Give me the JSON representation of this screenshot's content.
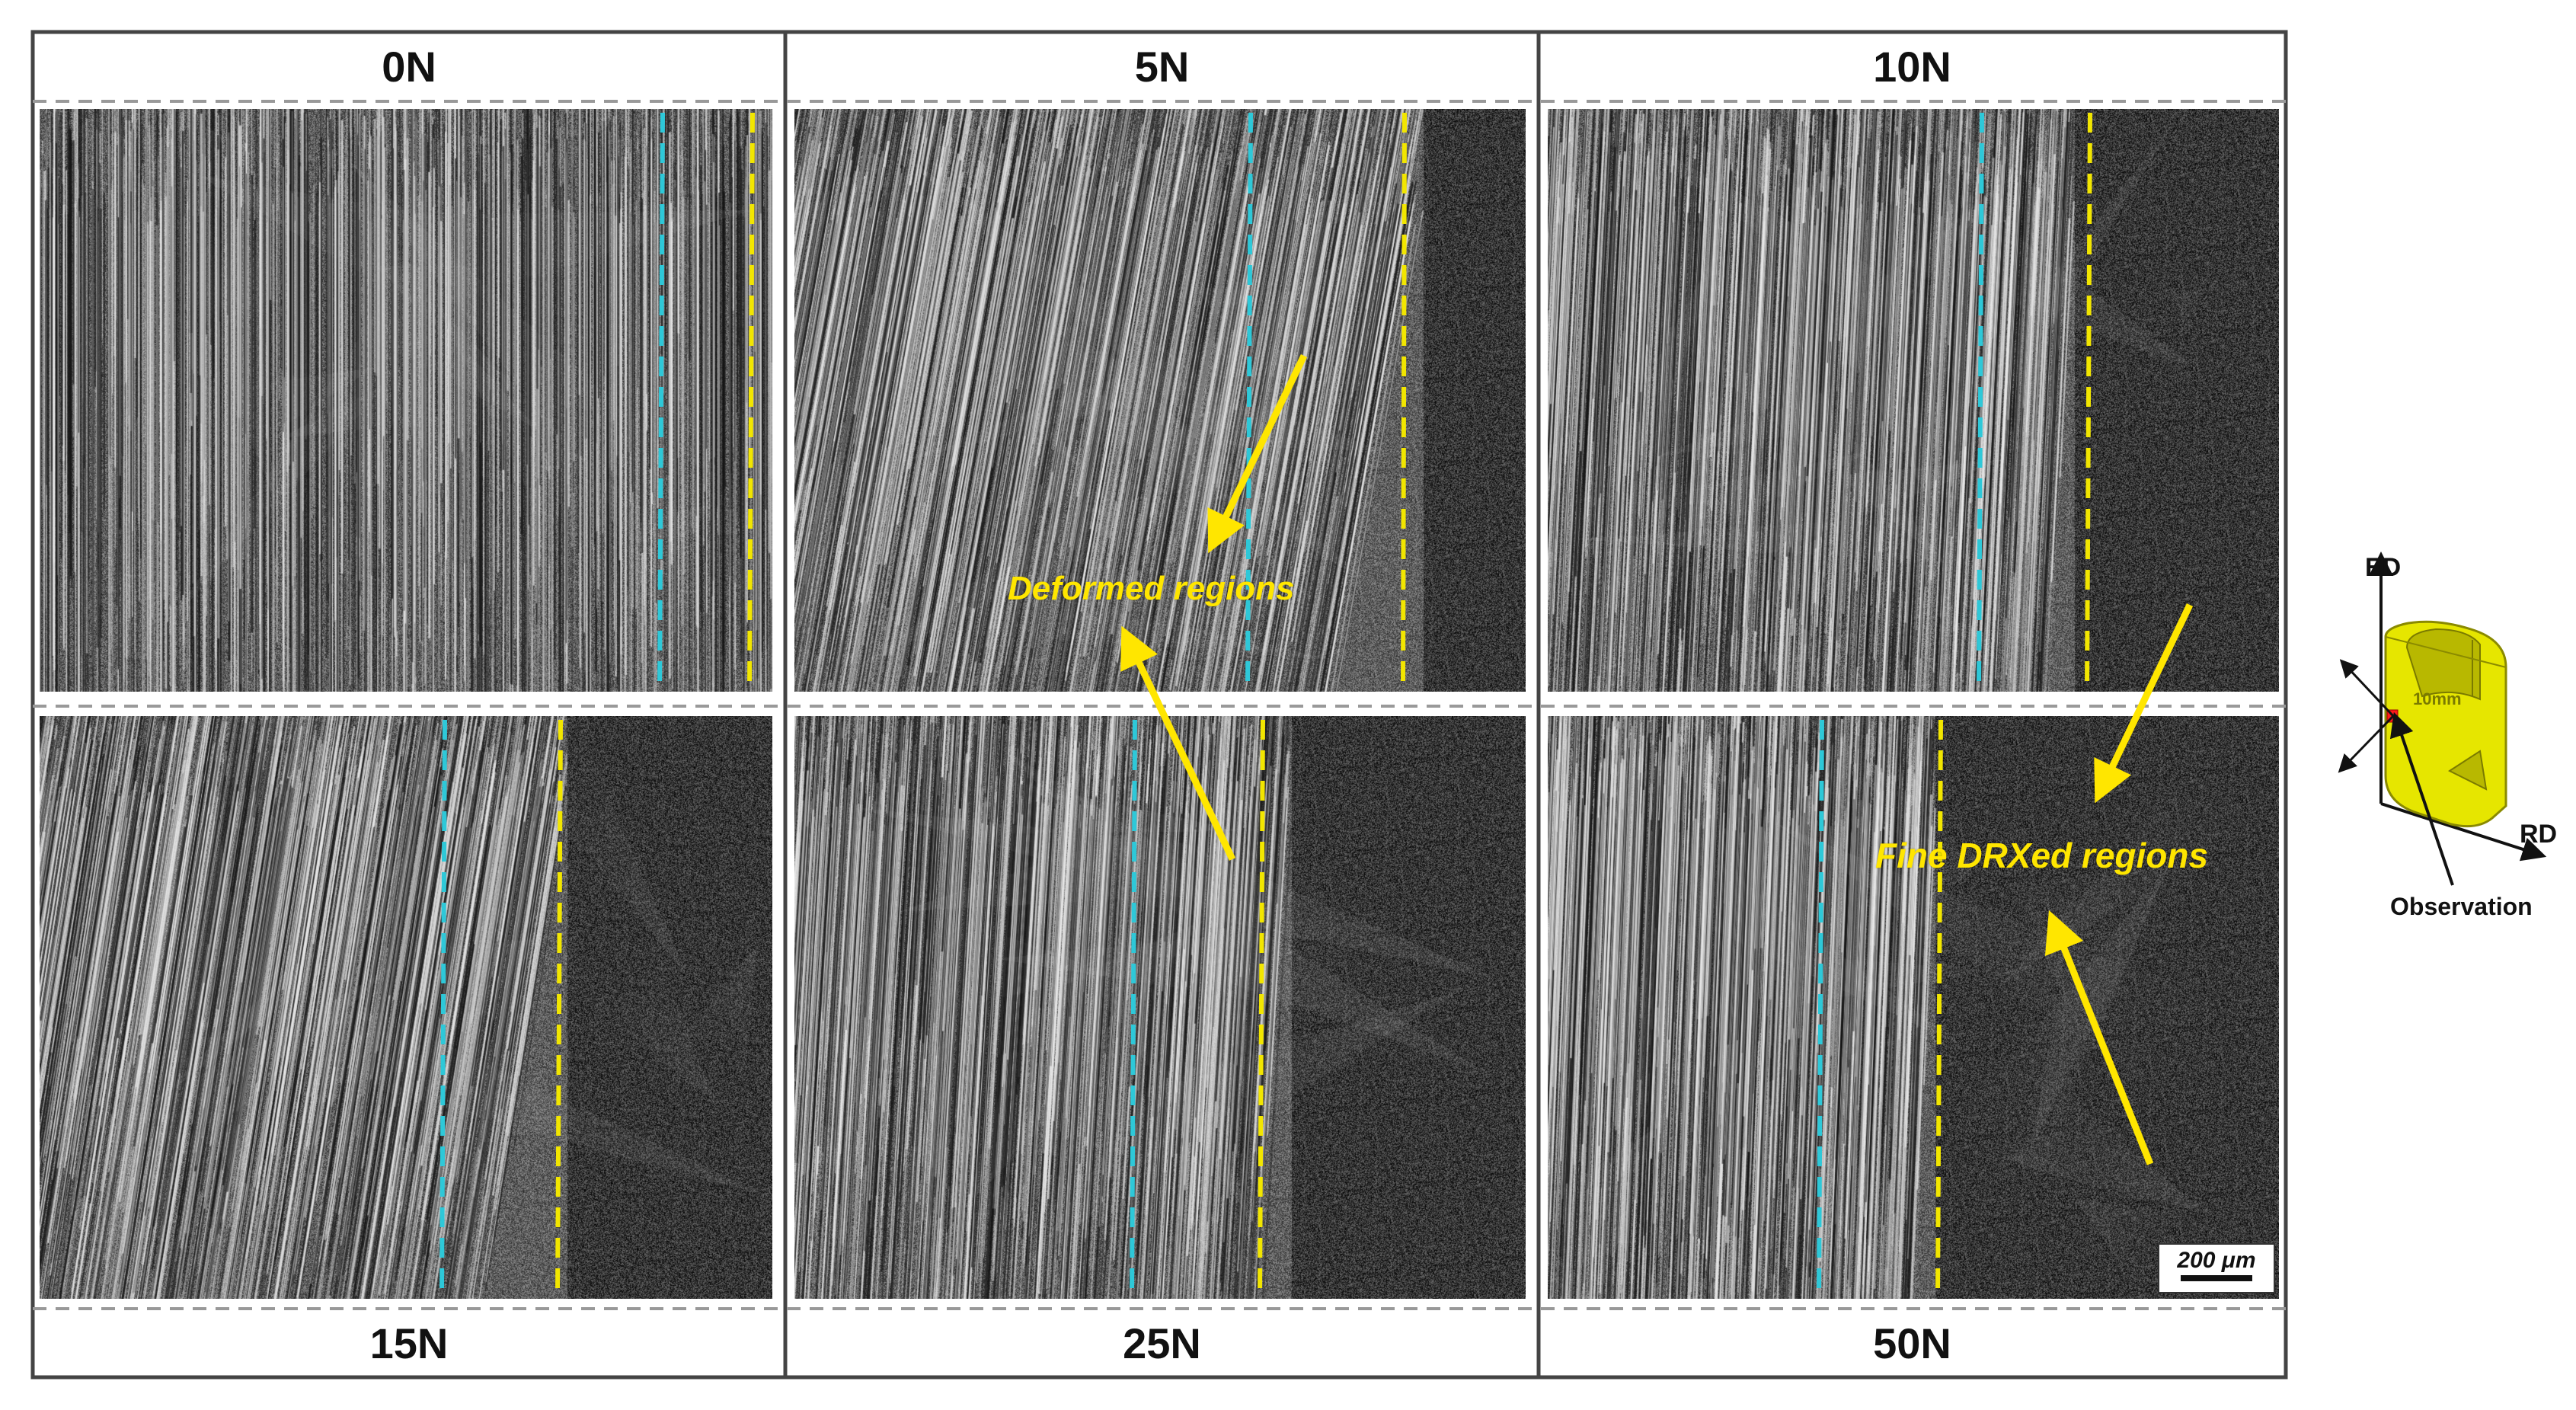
{
  "panels": [
    {
      "label": "0N",
      "texture": "deformed"
    },
    {
      "label": "5N",
      "texture": "mixed"
    },
    {
      "label": "10N",
      "texture": "mixed"
    },
    {
      "label": "15N",
      "texture": "mixed"
    },
    {
      "label": "25N",
      "texture": "mixed"
    },
    {
      "label": "50N",
      "texture": "mixed"
    }
  ],
  "annotations": {
    "deformed": "Deformed regions",
    "fine_drx": "Fine DRXed regions",
    "color": "#ffe600"
  },
  "boundary_colors": {
    "deformed_boundary": "#2ec8d8",
    "drx_boundary": "#f2e600"
  },
  "scale_bar": {
    "label": "200 μm"
  },
  "schematic": {
    "ed": "ED",
    "rd": "RD",
    "size": "10mm",
    "observation": "Observation",
    "part_color": "#e6e600",
    "marker_color": "#ff1a1a"
  }
}
